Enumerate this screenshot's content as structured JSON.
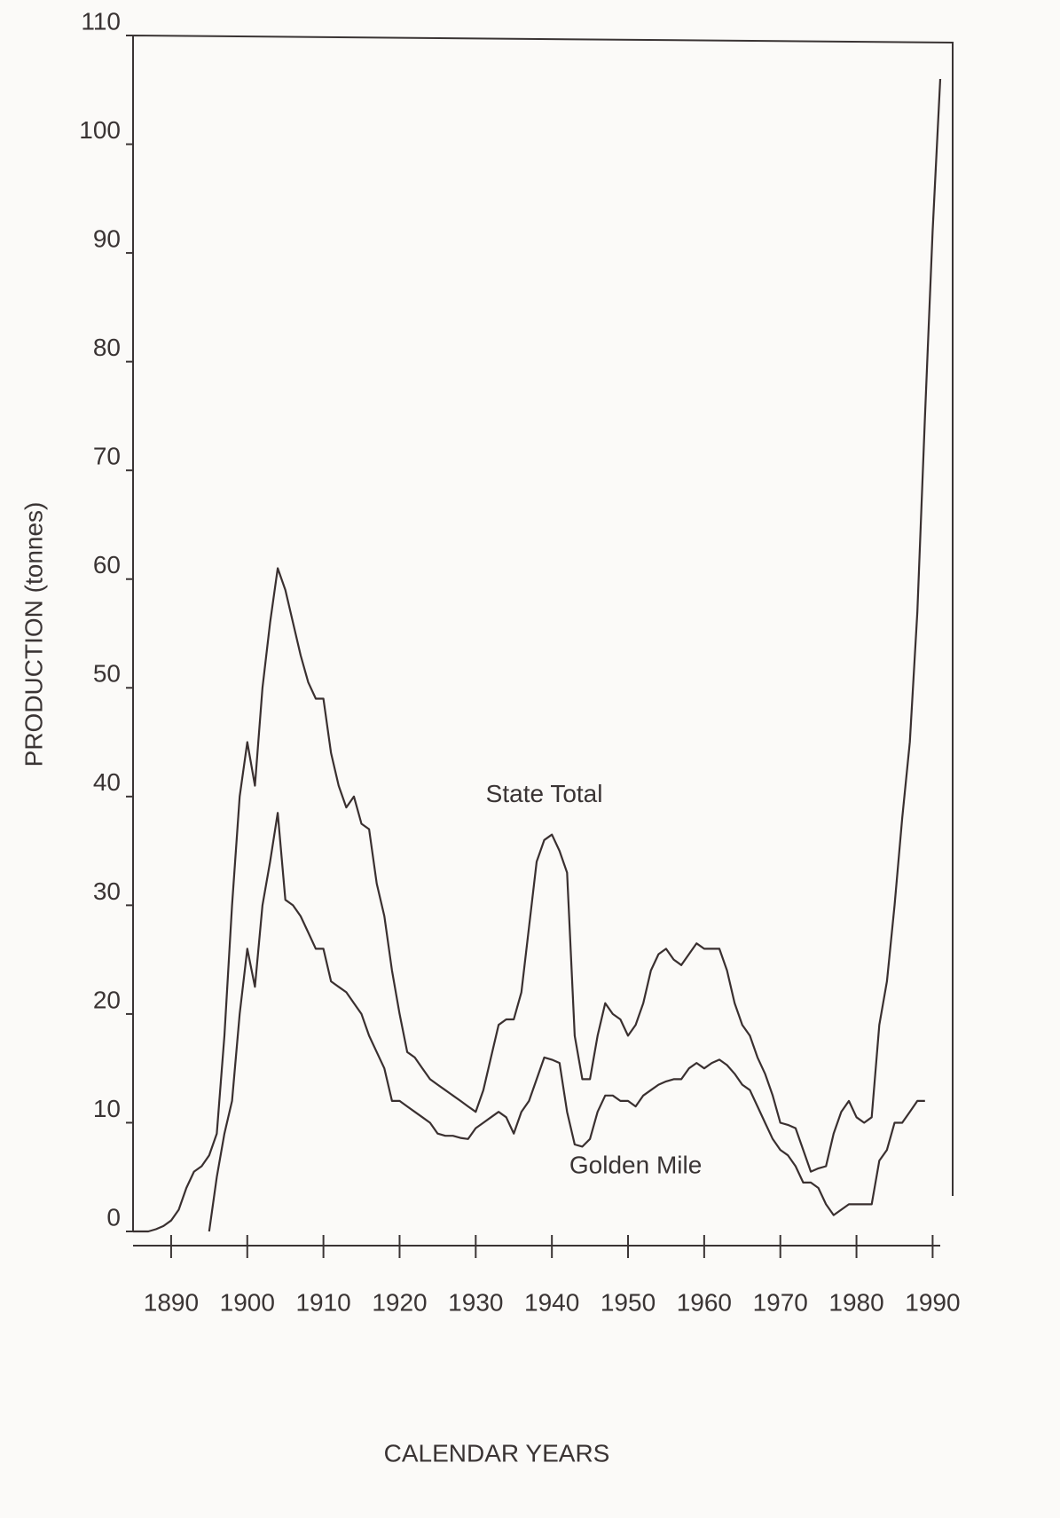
{
  "chart_data": {
    "type": "line",
    "y_label": "PRODUCTION (tonnes)",
    "x_label": "CALENDAR YEARS",
    "x": [
      1885,
      1886,
      1887,
      1888,
      1889,
      1890,
      1891,
      1892,
      1893,
      1894,
      1895,
      1896,
      1897,
      1898,
      1899,
      1900,
      1901,
      1902,
      1903,
      1904,
      1905,
      1906,
      1907,
      1908,
      1909,
      1910,
      1911,
      1912,
      1913,
      1914,
      1915,
      1916,
      1917,
      1918,
      1919,
      1920,
      1921,
      1922,
      1923,
      1924,
      1925,
      1926,
      1927,
      1928,
      1929,
      1930,
      1931,
      1932,
      1933,
      1934,
      1935,
      1936,
      1937,
      1938,
      1939,
      1940,
      1941,
      1942,
      1943,
      1944,
      1945,
      1946,
      1947,
      1948,
      1949,
      1950,
      1951,
      1952,
      1953,
      1954,
      1955,
      1956,
      1957,
      1958,
      1959,
      1960,
      1961,
      1962,
      1963,
      1964,
      1965,
      1966,
      1967,
      1968,
      1969,
      1970,
      1971,
      1972,
      1973,
      1974,
      1975,
      1976,
      1977,
      1978,
      1979,
      1980,
      1981,
      1982,
      1983,
      1984,
      1985,
      1986,
      1987,
      1988,
      1989,
      1990,
      1991
    ],
    "series": [
      {
        "name": "State Total",
        "color": "#3a3030",
        "values": [
          0,
          0,
          0,
          0.2,
          0.5,
          1,
          2,
          4,
          5.5,
          6,
          7,
          9,
          18,
          30,
          40,
          45,
          41,
          50,
          56,
          61,
          59,
          56,
          53,
          50.5,
          49,
          49,
          44,
          41,
          39,
          40,
          37.5,
          37,
          32,
          29,
          24,
          20,
          16.5,
          16,
          15,
          14,
          13.5,
          13,
          12.5,
          12,
          11.5,
          11,
          13,
          16,
          19,
          19.5,
          19.5,
          22,
          28,
          34,
          36,
          36.5,
          35,
          33,
          18,
          14,
          14,
          18,
          21,
          20,
          19.5,
          18,
          19,
          21,
          24,
          25.5,
          26,
          25,
          24.5,
          25.5,
          26.5,
          26,
          26,
          26,
          24,
          21,
          19,
          18,
          16,
          14.5,
          12.5,
          10,
          9.8,
          9.5,
          7.5,
          5.5,
          5.8,
          6,
          9,
          11,
          12,
          10.5,
          10,
          10.5,
          19,
          23,
          30,
          38,
          45,
          57,
          75,
          92,
          106
        ]
      },
      {
        "name": "Golden Mile",
        "color": "#3a3030",
        "values": [
          null,
          null,
          null,
          null,
          null,
          null,
          null,
          null,
          null,
          null,
          0,
          5,
          9,
          12,
          20,
          26,
          22.5,
          30,
          34,
          38.5,
          30.5,
          30,
          29,
          27.5,
          26,
          26,
          23,
          22.5,
          22,
          21,
          20,
          18,
          16.5,
          15,
          12,
          12,
          11.5,
          11,
          10.5,
          10,
          9,
          8.8,
          8.8,
          8.6,
          8.5,
          9.5,
          10,
          10.5,
          11,
          10.5,
          9,
          11,
          12,
          14,
          16,
          15.8,
          15.5,
          11,
          8,
          7.8,
          8.5,
          11,
          12.5,
          12.5,
          12,
          12,
          11.5,
          12.5,
          13,
          13.5,
          13.8,
          14,
          14,
          15,
          15.5,
          15,
          15.5,
          15.8,
          15.3,
          14.5,
          13.5,
          13,
          11.5,
          10,
          8.5,
          7.5,
          7,
          6,
          4.5,
          4.5,
          4,
          2.5,
          1.5,
          2,
          2.5,
          2.5,
          2.5,
          2.5,
          6.5,
          7.5,
          10,
          10,
          11,
          12,
          12,
          null,
          null
        ]
      }
    ],
    "xlim": [
      1885,
      1991
    ],
    "xticks": [
      1890,
      1900,
      1910,
      1920,
      1930,
      1940,
      1950,
      1960,
      1970,
      1980,
      1990
    ],
    "ylim": [
      0,
      110
    ],
    "yticks": [
      0,
      10,
      20,
      30,
      40,
      50,
      60,
      70,
      80,
      90,
      100,
      110
    ],
    "grid": false
  }
}
